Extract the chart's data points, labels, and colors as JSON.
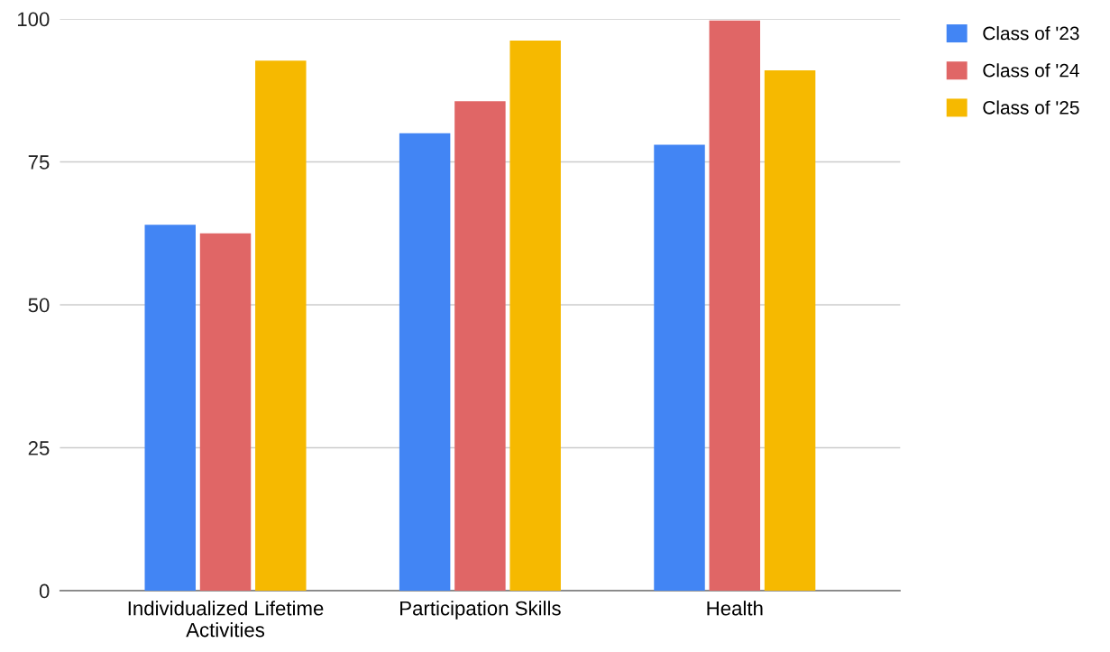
{
  "chart_data": {
    "type": "bar",
    "categories": [
      "Individualized Lifetime\nActivities",
      "Participation Skills",
      "Health"
    ],
    "series": [
      {
        "name": "Class of '23",
        "color": "#4285f4",
        "values": [
          64,
          80,
          78
        ]
      },
      {
        "name": "Class of '24",
        "color": "#e06666",
        "values": [
          62.5,
          85.6,
          99.7
        ]
      },
      {
        "name": "Class of '25",
        "color": "#f6b900",
        "values": [
          92.7,
          96.2,
          91
        ]
      }
    ],
    "ylim": [
      0,
      100
    ],
    "yticks": [
      0,
      25,
      50,
      75,
      100
    ],
    "grid": "y",
    "legend": "top right"
  }
}
